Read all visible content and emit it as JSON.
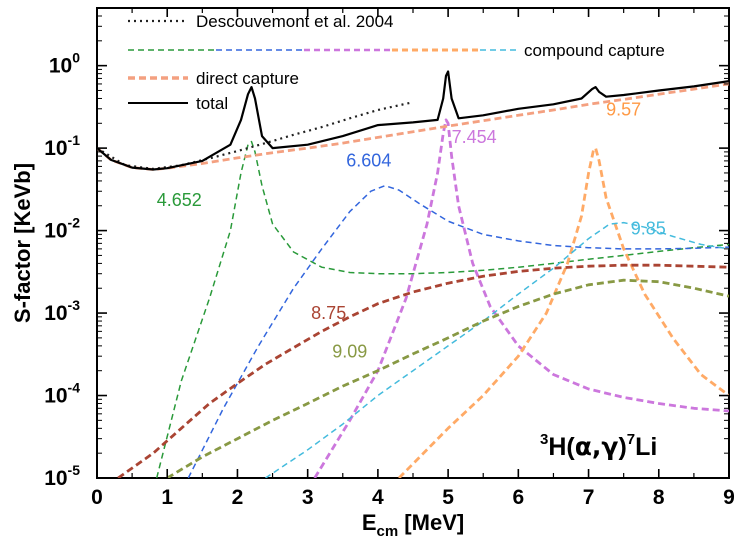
{
  "chart_data": {
    "type": "line",
    "xlabel_main": "E",
    "xlabel_sub": "cm",
    "xlabel_rest": " [MeV]",
    "ylabel": "S-factor [KeVb]",
    "xlim": [
      0,
      9
    ],
    "ylim": [
      1e-05,
      5
    ],
    "yscale": "log",
    "x_ticks": [
      "0",
      "1",
      "2",
      "3",
      "4",
      "5",
      "6",
      "7",
      "8",
      "9"
    ],
    "y_ticks": [
      {
        "value": 1,
        "base": "10",
        "exp": "0"
      },
      {
        "value": 0.1,
        "base": "10",
        "exp": "-1"
      },
      {
        "value": 0.01,
        "base": "10",
        "exp": "-2"
      },
      {
        "value": 0.001,
        "base": "10",
        "exp": "-3"
      },
      {
        "value": 0.0001,
        "base": "10",
        "exp": "-4"
      },
      {
        "value": 1e-05,
        "base": "10",
        "exp": "-5"
      }
    ],
    "reaction": {
      "pre": "3",
      "a": "H(",
      "b": "α,γ",
      "c": ")",
      "post": "7",
      "d": "Li"
    },
    "legend": {
      "descouvemont": "Descouvemont et al. 2004",
      "compound": "compound capture",
      "direct": "direct capture",
      "total": "total"
    },
    "series": [
      {
        "name": "Descouvemont et al. 2004",
        "color": "#222222",
        "style": "dotted",
        "x": [
          0,
          0.4,
          0.8,
          1.2,
          1.6,
          2.0,
          2.4,
          2.8,
          3.2,
          3.6,
          4.0,
          4.5
        ],
        "y": [
          0.1,
          0.062,
          0.056,
          0.062,
          0.075,
          0.092,
          0.115,
          0.145,
          0.18,
          0.23,
          0.29,
          0.36
        ]
      },
      {
        "name": "direct capture",
        "color": "#f4a080",
        "style": "dashed-thick",
        "x": [
          0,
          0.2,
          0.5,
          0.8,
          1.0,
          1.5,
          2.0,
          2.5,
          3.0,
          3.5,
          4.0,
          4.5,
          5.0,
          5.5,
          6.0,
          6.5,
          7.0,
          7.5,
          8.0,
          8.5,
          9.0
        ],
        "y": [
          0.1,
          0.072,
          0.058,
          0.055,
          0.057,
          0.065,
          0.076,
          0.088,
          0.1,
          0.115,
          0.135,
          0.158,
          0.185,
          0.215,
          0.25,
          0.29,
          0.34,
          0.39,
          0.45,
          0.52,
          0.6
        ]
      },
      {
        "name": "total",
        "color": "#000000",
        "style": "solid",
        "x": [
          0,
          0.2,
          0.5,
          0.8,
          1.0,
          1.5,
          1.9,
          2.05,
          2.15,
          2.2,
          2.25,
          2.35,
          2.5,
          3.0,
          3.5,
          4.0,
          4.5,
          4.85,
          4.93,
          4.97,
          5.0,
          5.05,
          5.15,
          5.5,
          6.0,
          6.5,
          6.9,
          7.05,
          7.1,
          7.15,
          7.25,
          7.5,
          8.0,
          8.5,
          9.0
        ],
        "y": [
          0.1,
          0.072,
          0.058,
          0.055,
          0.057,
          0.07,
          0.11,
          0.22,
          0.45,
          0.55,
          0.4,
          0.14,
          0.1,
          0.11,
          0.14,
          0.19,
          0.205,
          0.22,
          0.4,
          0.75,
          0.85,
          0.4,
          0.23,
          0.25,
          0.3,
          0.34,
          0.4,
          0.52,
          0.55,
          0.48,
          0.42,
          0.44,
          0.5,
          0.56,
          0.65
        ]
      },
      {
        "name": "4.652",
        "color": "#2a9a3a",
        "style": "dashed",
        "x": [
          0.85,
          1.2,
          1.6,
          1.9,
          2.05,
          2.15,
          2.2,
          2.25,
          2.35,
          2.5,
          2.8,
          3.2,
          3.6,
          4.0,
          4.5,
          5.0,
          5.5,
          6.0,
          6.5,
          7.0,
          7.5,
          8.0,
          8.5,
          9.0
        ],
        "y": [
          1e-05,
          0.00015,
          0.0015,
          0.01,
          0.05,
          0.11,
          0.12,
          0.09,
          0.035,
          0.012,
          0.0055,
          0.0036,
          0.0031,
          0.003,
          0.003,
          0.0031,
          0.0033,
          0.0036,
          0.004,
          0.0045,
          0.005,
          0.0056,
          0.0062,
          0.0068
        ]
      },
      {
        "name": "6.604",
        "color": "#3366dd",
        "style": "dashed",
        "x": [
          1.3,
          1.8,
          2.3,
          2.8,
          3.2,
          3.6,
          3.9,
          4.1,
          4.3,
          4.6,
          5.0,
          5.5,
          6.0,
          6.5,
          7.0,
          7.5,
          8.0,
          8.5,
          9.0
        ],
        "y": [
          1e-05,
          7e-05,
          0.0004,
          0.002,
          0.006,
          0.017,
          0.03,
          0.035,
          0.031,
          0.021,
          0.013,
          0.009,
          0.0075,
          0.0066,
          0.0062,
          0.006,
          0.006,
          0.0061,
          0.0063
        ]
      },
      {
        "name": "7.454",
        "color": "#cc77dd",
        "style": "dashed-thick",
        "x": [
          3.1,
          3.6,
          4.0,
          4.4,
          4.7,
          4.85,
          4.93,
          4.97,
          5.0,
          5.05,
          5.15,
          5.35,
          5.6,
          6.0,
          6.5,
          7.0,
          7.5,
          8.0,
          8.5,
          9.0
        ],
        "y": [
          1e-05,
          5e-05,
          0.0002,
          0.0015,
          0.012,
          0.05,
          0.15,
          0.22,
          0.2,
          0.08,
          0.02,
          0.004,
          0.0012,
          0.0004,
          0.00018,
          0.00012,
          9.5e-05,
          8e-05,
          7e-05,
          6.5e-05
        ]
      },
      {
        "name": "9.57",
        "color": "#ffaa66",
        "style": "dashed-thick",
        "x": [
          4.3,
          5.0,
          5.5,
          6.0,
          6.4,
          6.7,
          6.9,
          7.0,
          7.07,
          7.1,
          7.15,
          7.25,
          7.5,
          7.8,
          8.2,
          8.6,
          9.0
        ],
        "y": [
          1e-05,
          4e-05,
          0.0001,
          0.0003,
          0.001,
          0.004,
          0.015,
          0.05,
          0.095,
          0.1,
          0.07,
          0.025,
          0.006,
          0.0017,
          0.0005,
          0.00018,
          0.0001
        ]
      },
      {
        "name": "9.85",
        "color": "#44bbdd",
        "style": "dashed",
        "x": [
          2.4,
          3.0,
          3.5,
          4.0,
          4.5,
          5.0,
          5.5,
          6.0,
          6.5,
          7.0,
          7.3,
          7.5,
          7.8,
          8.2,
          8.6,
          9.0
        ],
        "y": [
          1e-05,
          2.2e-05,
          4.5e-05,
          0.0001,
          0.0002,
          0.0004,
          0.0008,
          0.0017,
          0.0035,
          0.008,
          0.012,
          0.0125,
          0.011,
          0.0085,
          0.0068,
          0.006
        ]
      },
      {
        "name": "8.75",
        "color": "#aa4433",
        "style": "dashed-thick",
        "x": [
          0.3,
          0.8,
          1.2,
          1.6,
          2.0,
          2.4,
          2.8,
          3.2,
          3.6,
          4.0,
          4.5,
          5.0,
          5.5,
          6.0,
          6.5,
          7.0,
          7.5,
          8.0,
          8.5,
          9.0
        ],
        "y": [
          1e-05,
          2e-05,
          4e-05,
          8e-05,
          0.00014,
          0.00024,
          0.00038,
          0.0006,
          0.0009,
          0.0013,
          0.0018,
          0.0023,
          0.0028,
          0.0032,
          0.0035,
          0.0037,
          0.0038,
          0.0038,
          0.0037,
          0.0036
        ]
      },
      {
        "name": "9.09",
        "color": "#889944",
        "style": "dashed-thick",
        "x": [
          1.0,
          1.5,
          2.0,
          2.5,
          3.0,
          3.5,
          4.0,
          4.5,
          5.0,
          5.5,
          6.0,
          6.5,
          7.0,
          7.5,
          8.0,
          8.5,
          9.0
        ],
        "y": [
          1e-05,
          1.8e-05,
          3e-05,
          5e-05,
          8e-05,
          0.00013,
          0.0002,
          0.00032,
          0.0005,
          0.0008,
          0.0012,
          0.0017,
          0.0022,
          0.0025,
          0.0024,
          0.002,
          0.0016
        ]
      }
    ],
    "labels": [
      {
        "text": "4.652",
        "color": "#2a9a3a",
        "x": 0.85,
        "y": 0.02
      },
      {
        "text": "6.604",
        "color": "#3366dd",
        "x": 3.55,
        "y": 0.06
      },
      {
        "text": "7.454",
        "color": "#cc77dd",
        "x": 5.05,
        "y": 0.115
      },
      {
        "text": "9.57",
        "color": "#ff9944",
        "x": 7.25,
        "y": 0.25
      },
      {
        "text": "9.85",
        "color": "#44bbdd",
        "x": 7.6,
        "y": 0.009
      },
      {
        "text": "8.75",
        "color": "#aa4433",
        "x": 3.05,
        "y": 0.00085
      },
      {
        "text": "9.09",
        "color": "#889944",
        "x": 3.35,
        "y": 0.00029
      }
    ]
  }
}
